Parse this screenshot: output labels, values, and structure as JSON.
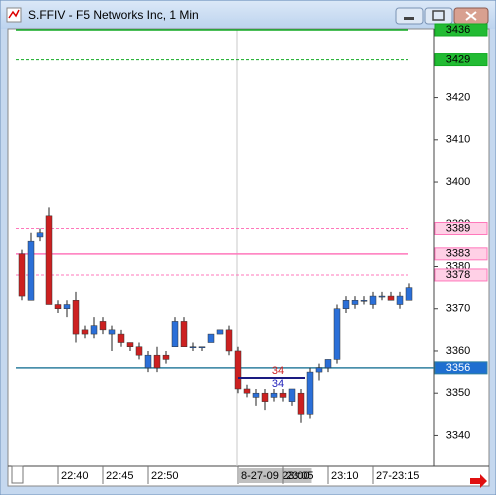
{
  "chart_data": {
    "type": "candlestick",
    "title": "S.FFIV - F5 Networks Inc, 1 Min",
    "categories": [
      null,
      null,
      null,
      null,
      "22:40",
      null,
      null,
      null,
      null,
      "22:45",
      null,
      null,
      null,
      null,
      "22:50",
      null,
      null,
      null,
      null,
      null,
      null,
      null,
      null,
      null,
      "8-27-09 23:00",
      null,
      null,
      null,
      null,
      "23:05",
      null,
      null,
      null,
      null,
      "23:10",
      null,
      null,
      null,
      null,
      "27-23:15",
      null,
      null,
      null,
      null
    ],
    "open": [
      3383,
      3372,
      3387,
      3392,
      3371,
      3370,
      3372,
      3365,
      3364,
      3367,
      3364,
      3364,
      3362,
      3361,
      3356,
      3359,
      3359,
      3361,
      3367,
      3361,
      3361,
      3362,
      3364,
      3365,
      3360,
      3351,
      3349,
      3350,
      3349,
      3350,
      3348,
      3350,
      3345,
      3355,
      3356,
      3358,
      3370,
      3371,
      3372,
      3371,
      3373,
      3373,
      3371,
      3372
    ],
    "high": [
      3384,
      3388,
      3389,
      3394,
      3372,
      3372,
      3374,
      3366,
      3368,
      3368,
      3366,
      3365,
      3362,
      3362,
      3360,
      3361,
      3360,
      3368,
      3368,
      3362,
      3361,
      3364,
      3365,
      3366,
      3361,
      3352,
      3351,
      3351,
      3351,
      3351,
      3351,
      3351,
      3356,
      3357,
      3358,
      3371,
      3373,
      3373,
      3373,
      3374,
      3374,
      3374,
      3374,
      3376
    ],
    "low": [
      3372,
      3372,
      3386,
      3371,
      3369,
      3368,
      3362,
      3363,
      3363,
      3364,
      3360,
      3361,
      3360,
      3358,
      3355,
      3355,
      3357,
      3361,
      3361,
      3360,
      3360,
      3362,
      3364,
      3359,
      3350,
      3349,
      3347,
      3346,
      3348,
      3348,
      3347,
      3343,
      3344,
      3353,
      3355,
      3357,
      3369,
      3370,
      3371,
      3370,
      3372,
      3372,
      3370,
      3372
    ],
    "close": [
      3373,
      3386,
      3388,
      3371,
      3370,
      3371,
      3364,
      3364,
      3366,
      3365,
      3365,
      3362,
      3361,
      3359,
      3359,
      3356,
      3358,
      3367,
      3361,
      3361,
      3361,
      3364,
      3365,
      3360,
      3351,
      3350,
      3350,
      3348,
      3350,
      3349,
      3351,
      3345,
      3355,
      3356,
      3358,
      3370,
      3372,
      3372,
      3372,
      3373,
      3373,
      3372,
      3373,
      3375
    ],
    "up_color": "#2b6fd8",
    "down_color": "#cc2020",
    "ylim": [
      3333,
      3436
    ],
    "yticks": [
      3340,
      3350,
      3360,
      3370,
      3380,
      3390,
      3400,
      3410,
      3420
    ],
    "levels": [
      {
        "value": 3436,
        "color": "#11aa22",
        "style": "solid"
      },
      {
        "value": 3429,
        "color": "#11aa22",
        "style": "dashed"
      },
      {
        "value": 3389,
        "color": "#ff77bb",
        "style": "dashed"
      },
      {
        "value": 3383,
        "color": "#ff77bb",
        "style": "solid"
      },
      {
        "value": 3378,
        "color": "#ff77bb",
        "style": "dashed"
      },
      {
        "value": 3356,
        "color": "#2f7f9f",
        "style": "solid"
      }
    ],
    "annotations": [
      {
        "text": "34",
        "color": "#cc2020"
      },
      {
        "text": "34",
        "color": "#2222bb"
      }
    ]
  }
}
